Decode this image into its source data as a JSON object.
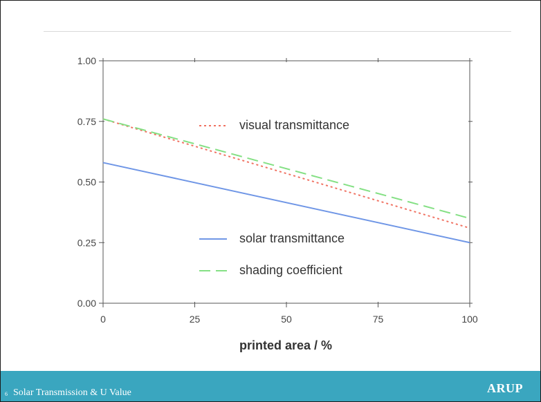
{
  "slide": {
    "number": "6",
    "title": "Solar Transmission & U Value",
    "logo": "ARUP"
  },
  "colors": {
    "solar": "#6f96e6",
    "visual": "#f07060",
    "shading": "#84e084",
    "axis": "#555555",
    "footer": "#3aa6bf"
  },
  "chart_data": {
    "type": "line",
    "xlabel": "printed area / %",
    "ylabel": "",
    "xlim": [
      0,
      100
    ],
    "ylim": [
      0,
      1
    ],
    "x_ticks": [
      0,
      25,
      50,
      75,
      100
    ],
    "x_tick_labels": [
      "0",
      "25",
      "50",
      "75",
      "100"
    ],
    "y_ticks": [
      0,
      0.25,
      0.5,
      0.75,
      1
    ],
    "y_tick_labels": [
      "0.00",
      "0.25",
      "0.50",
      "0.75",
      "1.00"
    ],
    "grid": false,
    "legend_placement": "inside",
    "series": [
      {
        "name": "visual transmittance",
        "style": "dotted",
        "color": "#f07060",
        "x": [
          0,
          100
        ],
        "y": [
          0.76,
          0.31
        ]
      },
      {
        "name": "solar transmittance",
        "style": "solid",
        "color": "#6f96e6",
        "x": [
          0,
          100
        ],
        "y": [
          0.58,
          0.25
        ]
      },
      {
        "name": "shading coefficient",
        "style": "dashed",
        "color": "#84e084",
        "x": [
          0,
          100
        ],
        "y": [
          0.76,
          0.35
        ]
      }
    ]
  }
}
